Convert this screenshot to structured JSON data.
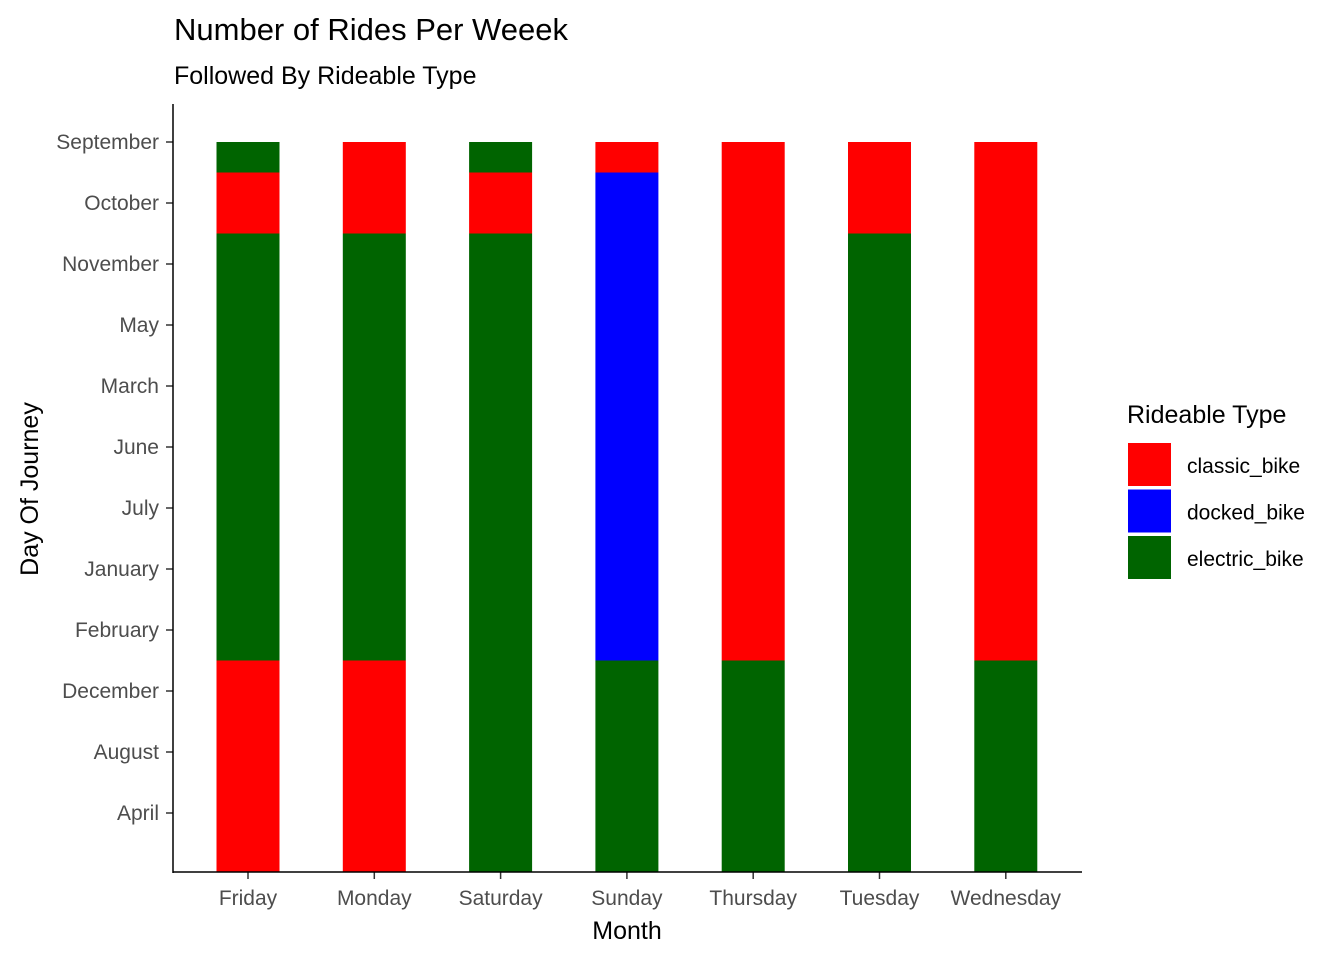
{
  "chart_data": {
    "type": "bar",
    "title": "Number of Rides Per Weeek",
    "subtitle": "Followed By Rideable Type",
    "xlabel": "Month",
    "ylabel": "Day Of Journey",
    "categories": [
      "Friday",
      "Monday",
      "Saturday",
      "Sunday",
      "Thursday",
      "Tuesday",
      "Wednesday"
    ],
    "y_levels": [
      "April",
      "August",
      "December",
      "February",
      "January",
      "July",
      "June",
      "March",
      "May",
      "November",
      "October",
      "September"
    ],
    "legend": {
      "title": "Rideable Type",
      "position": "right",
      "items": [
        {
          "name": "classic_bike",
          "color": "#ff0000"
        },
        {
          "name": "docked_bike",
          "color": "#0000ff"
        },
        {
          "name": "electric_bike",
          "color": "#006400"
        }
      ]
    },
    "bars": [
      {
        "category": "Friday",
        "segments": [
          {
            "type": "classic_bike",
            "from": "April",
            "to": "December"
          },
          {
            "type": "electric_bike",
            "from": "February",
            "to": "November"
          },
          {
            "type": "classic_bike",
            "from": "October",
            "to": "October"
          },
          {
            "type": "electric_bike",
            "from": "September",
            "to": "September"
          }
        ]
      },
      {
        "category": "Monday",
        "segments": [
          {
            "type": "classic_bike",
            "from": "April",
            "to": "December"
          },
          {
            "type": "electric_bike",
            "from": "February",
            "to": "November"
          },
          {
            "type": "classic_bike",
            "from": "October",
            "to": "September"
          }
        ]
      },
      {
        "category": "Saturday",
        "segments": [
          {
            "type": "electric_bike",
            "from": "April",
            "to": "November"
          },
          {
            "type": "classic_bike",
            "from": "October",
            "to": "October"
          },
          {
            "type": "electric_bike",
            "from": "September",
            "to": "September"
          }
        ]
      },
      {
        "category": "Sunday",
        "segments": [
          {
            "type": "electric_bike",
            "from": "April",
            "to": "December"
          },
          {
            "type": "docked_bike",
            "from": "February",
            "to": "October"
          },
          {
            "type": "classic_bike",
            "from": "September",
            "to": "September"
          }
        ]
      },
      {
        "category": "Thursday",
        "segments": [
          {
            "type": "electric_bike",
            "from": "April",
            "to": "December"
          },
          {
            "type": "classic_bike",
            "from": "February",
            "to": "September"
          }
        ]
      },
      {
        "category": "Tuesday",
        "segments": [
          {
            "type": "electric_bike",
            "from": "April",
            "to": "November"
          },
          {
            "type": "classic_bike",
            "from": "October",
            "to": "September"
          }
        ]
      },
      {
        "category": "Wednesday",
        "segments": [
          {
            "type": "electric_bike",
            "from": "April",
            "to": "December"
          },
          {
            "type": "classic_bike",
            "from": "February",
            "to": "September"
          }
        ]
      }
    ],
    "grid": false
  }
}
